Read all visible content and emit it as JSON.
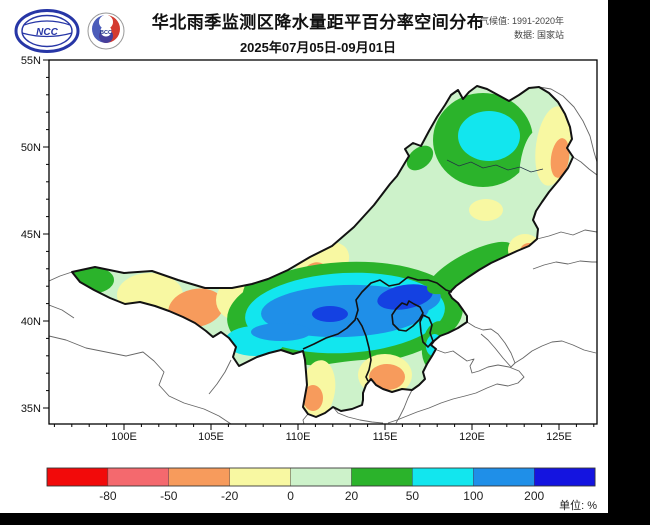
{
  "header": {
    "title": "华北雨季监测区降水量距平百分率空间分布",
    "date_range": "2025年07月05日-09月01日",
    "climate_note": "气候值: 1991-2020年",
    "data_note": "数据: 国家站",
    "ncc_logo_text": "NCC",
    "bcc_logo_text": "BCC"
  },
  "map": {
    "y_axis_labels": [
      "55N",
      "50N",
      "45N",
      "40N",
      "35N"
    ],
    "x_axis_labels": [
      "100E",
      "105E",
      "110E",
      "115E",
      "120E",
      "125E"
    ]
  },
  "legend": {
    "unit": "单位: %",
    "ticks": [
      "-80",
      "-50",
      "-20",
      "0",
      "20",
      "50",
      "100",
      "200"
    ],
    "colors": [
      "#f20a0a",
      "#f4696e",
      "#f79b5c",
      "#f8f8a2",
      "#cdf2ca",
      "#2bb32b",
      "#12e6ee",
      "#1f8fe8",
      "#1414e0"
    ]
  },
  "chart_data": {
    "type": "filled-contour-map",
    "title": "华北雨季监测区降水量距平百分率空间分布",
    "period": "2025年07月05日-09月01日",
    "baseline": "1991-2020年",
    "data_source": "国家站",
    "unit": "%",
    "scale_breaks": [
      -80,
      -50,
      -20,
      0,
      20,
      50,
      100,
      200
    ],
    "lon_ticks": [
      "100E",
      "105E",
      "110E",
      "115E",
      "120E",
      "125E"
    ],
    "lat_ticks": [
      "35N",
      "40N",
      "45N",
      "50N",
      "55N"
    ],
    "features": [
      {
        "area": "monitoring-region-center 108E-119E, 40N-41.5N",
        "anomaly_percent": "100 to >200 (blue core)"
      },
      {
        "area": "around blue core",
        "anomaly_percent": "50-100 (cyan ring)"
      },
      {
        "area": "Hulunbuir lobe 119E-122E, 49N-52N",
        "anomaly_percent": "50-100 (cyan patch in green)"
      },
      {
        "area": "western arm 101E-104E, 39N-42N",
        "anomaly_percent": "-20 to -50 (orange band)"
      },
      {
        "area": "east edge ~121E, 46N-48N",
        "anomaly_percent": "-20 to -50"
      },
      {
        "area": "south Hebei 114E-116E, 36N-37.5N",
        "anomaly_percent": "-20 to -50"
      },
      {
        "area": "south Shanxi ~110.5E, 35N-37N",
        "anomaly_percent": "-20 to -50"
      }
    ]
  }
}
